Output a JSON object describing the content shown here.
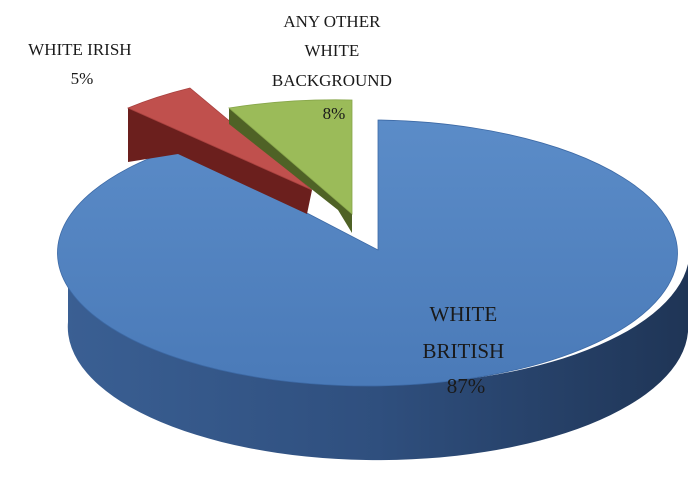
{
  "chart_data": {
    "type": "pie",
    "style": "3d-exploded",
    "slices": [
      {
        "label_lines": [
          "WHITE",
          "BRITISH"
        ],
        "pct_label": "87%",
        "value": 87,
        "color": "#4F81BD"
      },
      {
        "label_lines": [
          "WHITE IRISH"
        ],
        "pct_label": "5%",
        "value": 5,
        "color": "#C0504D"
      },
      {
        "label_lines": [
          "ANY OTHER",
          "WHITE",
          "BACKGROUND"
        ],
        "pct_label": "8%",
        "value": 8,
        "color": "#9BBB59"
      }
    ]
  }
}
